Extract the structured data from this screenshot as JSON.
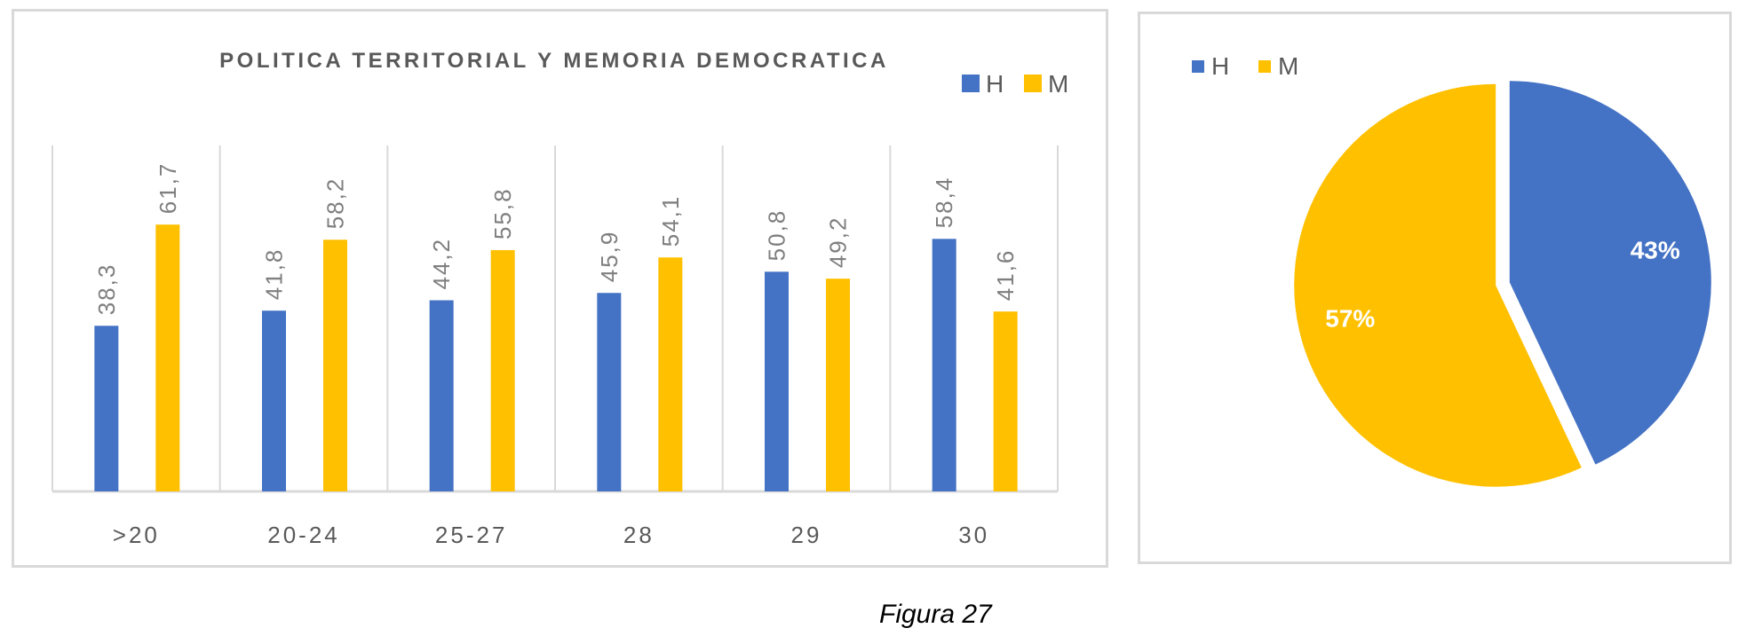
{
  "caption": "Figura 27",
  "colors": {
    "H": "#4472c4",
    "M": "#ffc000",
    "text": "#595959",
    "grid": "#d9d9d9"
  },
  "chart_data": [
    {
      "type": "bar",
      "title": "POLITICA TERRITORIAL Y MEMORIA DEMOCRATICA",
      "categories": [
        ">20",
        "20-24",
        "25-27",
        "28",
        "29",
        "30"
      ],
      "series": [
        {
          "name": "H",
          "values": [
            38.3,
            41.8,
            44.2,
            45.9,
            50.8,
            58.4
          ],
          "labels": [
            "38,3",
            "41,8",
            "44,2",
            "45,9",
            "50,8",
            "58,4"
          ]
        },
        {
          "name": "M",
          "values": [
            61.7,
            58.2,
            55.8,
            54.1,
            49.2,
            41.6
          ],
          "labels": [
            "61,7",
            "58,2",
            "55,8",
            "54,1",
            "49,2",
            "41,6"
          ]
        }
      ],
      "ylim": [
        0,
        80
      ],
      "grid": "vertical category separators",
      "legend": "top-right"
    },
    {
      "type": "pie",
      "categories": [
        "H",
        "M"
      ],
      "values": [
        43,
        57
      ],
      "labels": [
        "43%",
        "57%"
      ],
      "legend": "top-left"
    }
  ]
}
